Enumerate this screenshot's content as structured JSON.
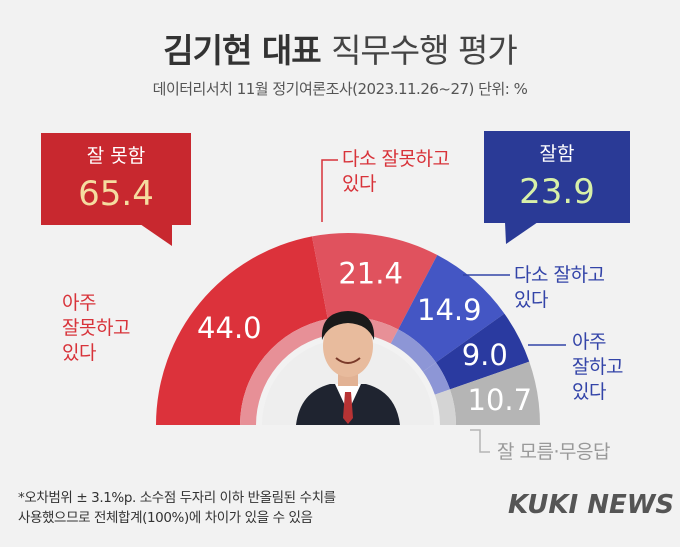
{
  "title_bold": "김기현 대표",
  "title_rest": "직무수행 평가",
  "subtitle": "데이터리서치 11월 정기여론조사(2023.11.26~27) 단위: %",
  "callouts": {
    "bad": {
      "label": "잘 못함",
      "value": "65.4"
    },
    "good": {
      "label": "잘함",
      "value": "23.9"
    }
  },
  "labels": {
    "very_bad": [
      "아주",
      "잘못하고",
      "있다"
    ],
    "somewhat_bad": [
      "다소 잘못하고",
      "있다"
    ],
    "somewhat_good": [
      "다소 잘하고",
      "있다"
    ],
    "very_good": [
      "아주",
      "잘하고",
      "있다"
    ],
    "dont_know": "잘 모름·무응답"
  },
  "footnote": [
    "*오차범위 ± 3.1%p. 소수점 두자리 이하 반올림된 수치를",
    "사용했으므로 전체합계(100%)에 차이가 있을 수 있음"
  ],
  "brand": "KUKI NEWS",
  "colors": {
    "very_bad": "#dc323b",
    "somewhat_bad": "#e0525e",
    "somewhat_good": "#4456c4",
    "very_good": "#2a3aa0",
    "dont_know": "#b5b5b5",
    "inner_red": "#e79097",
    "inner_blue": "#8d96d6",
    "inner_gray": "#d4d4d4"
  },
  "chart_data": {
    "type": "pie",
    "subtype": "semi-donut",
    "categories": [
      "아주 잘못하고 있다",
      "다소 잘못하고 있다",
      "다소 잘하고 있다",
      "아주 잘하고 있다",
      "잘 모름·무응답"
    ],
    "values": [
      44.0,
      21.4,
      14.9,
      9.0,
      10.7
    ],
    "value_labels": [
      "44.0",
      "21.4",
      "14.9",
      "9.0",
      "10.7"
    ],
    "groups": [
      {
        "name": "잘 못함",
        "value": 65.4
      },
      {
        "name": "잘함",
        "value": 23.9
      }
    ],
    "unit": "%"
  }
}
